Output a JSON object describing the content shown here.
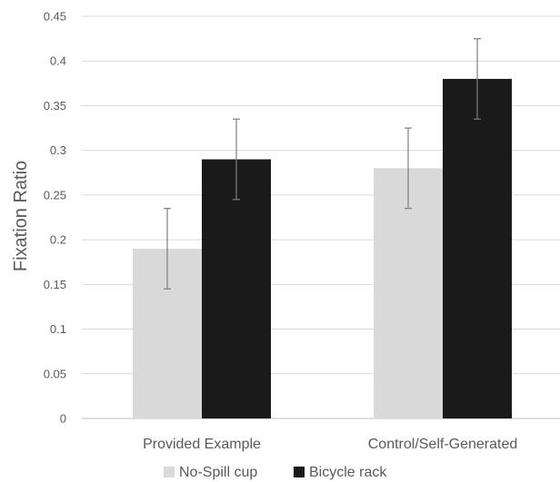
{
  "chart_data": {
    "type": "bar",
    "title": "",
    "xlabel": "",
    "ylabel": "Fixation Ratio",
    "ylim": [
      0,
      0.45
    ],
    "yticks": [
      "0",
      "0.05",
      "0.1",
      "0.15",
      "0.2",
      "0.25",
      "0.3",
      "0.35",
      "0.4",
      "0.45"
    ],
    "categories": [
      "Provided Example",
      "Control/Self-Generated"
    ],
    "series": [
      {
        "name": "No-Spill cup",
        "color": "#d9d9d9",
        "values": [
          0.19,
          0.28
        ],
        "error": [
          0.045,
          0.045
        ]
      },
      {
        "name": "Bicycle rack",
        "color": "#1a1a1a",
        "values": [
          0.29,
          0.38
        ],
        "error": [
          0.045,
          0.045
        ]
      }
    ],
    "grid": true,
    "legend": "bottom"
  }
}
